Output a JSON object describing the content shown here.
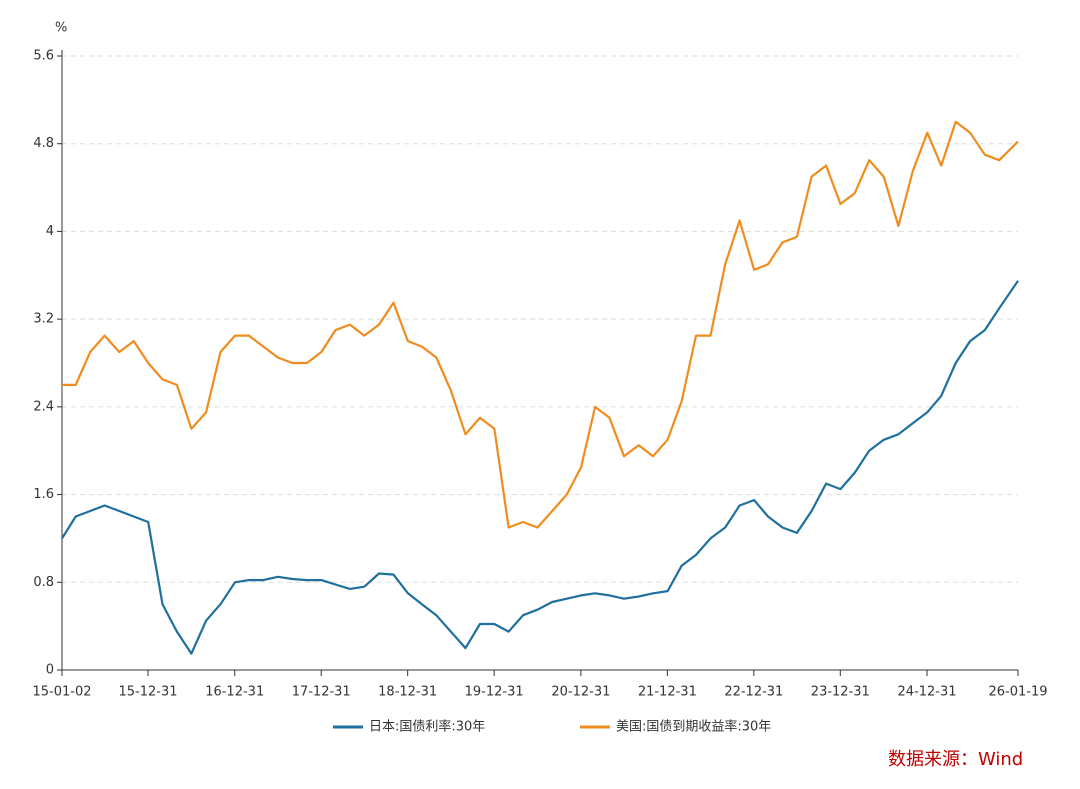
{
  "chart_data": {
    "type": "line",
    "y_unit": "%",
    "source": "数据来源：Wind",
    "x": [
      "15-01-02",
      "15-03-01",
      "15-05-01",
      "15-07-01",
      "15-09-01",
      "15-11-01",
      "16-01-01",
      "16-03-01",
      "16-05-01",
      "16-07-01",
      "16-09-01",
      "16-11-01",
      "17-01-01",
      "17-03-01",
      "17-05-01",
      "17-07-01",
      "17-09-01",
      "17-11-01",
      "18-01-01",
      "18-03-01",
      "18-05-01",
      "18-07-01",
      "18-09-01",
      "18-11-01",
      "19-01-01",
      "19-03-01",
      "19-05-01",
      "19-07-01",
      "19-09-01",
      "19-11-01",
      "20-01-01",
      "20-03-01",
      "20-05-01",
      "20-07-01",
      "20-09-01",
      "20-11-01",
      "21-01-01",
      "21-03-01",
      "21-05-01",
      "21-07-01",
      "21-09-01",
      "21-11-01",
      "22-01-01",
      "22-03-01",
      "22-05-01",
      "22-07-01",
      "22-09-01",
      "22-11-01",
      "23-01-01",
      "23-03-01",
      "23-05-01",
      "23-07-01",
      "23-09-01",
      "23-11-01",
      "24-01-01",
      "24-03-01",
      "24-05-01",
      "24-07-01",
      "24-09-01",
      "24-11-01",
      "25-01-01",
      "25-03-01",
      "25-05-01",
      "25-07-01",
      "25-09-01",
      "25-11-01",
      "26-01-19"
    ],
    "series": [
      {
        "name": "日本:国债利率:30年",
        "color": "#1f6f9f",
        "values": [
          1.2,
          1.4,
          1.45,
          1.5,
          1.45,
          1.4,
          1.35,
          0.6,
          0.35,
          0.15,
          0.45,
          0.6,
          0.8,
          0.82,
          0.82,
          0.85,
          0.83,
          0.82,
          0.82,
          0.78,
          0.74,
          0.76,
          0.88,
          0.87,
          0.7,
          0.6,
          0.5,
          0.35,
          0.2,
          0.42,
          0.42,
          0.35,
          0.5,
          0.55,
          0.62,
          0.65,
          0.68,
          0.7,
          0.68,
          0.65,
          0.67,
          0.7,
          0.72,
          0.95,
          1.05,
          1.2,
          1.3,
          1.5,
          1.55,
          1.4,
          1.3,
          1.25,
          1.45,
          1.7,
          1.65,
          1.8,
          2.0,
          2.1,
          2.15,
          2.25,
          2.35,
          2.5,
          2.8,
          3.0,
          3.1,
          3.3,
          3.55
        ]
      },
      {
        "name": "美国:国债到期收益率:30年",
        "color": "#f08c1e",
        "values": [
          2.6,
          2.6,
          2.9,
          3.05,
          2.9,
          3.0,
          2.8,
          2.65,
          2.6,
          2.2,
          2.35,
          2.9,
          3.05,
          3.05,
          2.95,
          2.85,
          2.8,
          2.8,
          2.9,
          3.1,
          3.15,
          3.05,
          3.15,
          3.35,
          3.0,
          2.95,
          2.85,
          2.55,
          2.15,
          2.3,
          2.2,
          1.3,
          1.35,
          1.3,
          1.45,
          1.6,
          1.85,
          2.4,
          2.3,
          1.95,
          2.05,
          1.95,
          2.1,
          2.45,
          3.05,
          3.05,
          3.7,
          4.1,
          3.65,
          3.7,
          3.9,
          3.95,
          4.5,
          4.6,
          4.25,
          4.35,
          4.65,
          4.5,
          4.05,
          4.55,
          4.9,
          4.6,
          5.0,
          4.9,
          4.7,
          4.65,
          4.82
        ]
      }
    ],
    "xlim": [
      "15-01-02",
      "26-01-19"
    ],
    "xticks": [
      "15-01-02",
      "15-12-31",
      "16-12-31",
      "17-12-31",
      "18-12-31",
      "19-12-31",
      "20-12-31",
      "21-12-31",
      "22-12-31",
      "23-12-31",
      "24-12-31",
      "26-01-19"
    ],
    "ylim": [
      0,
      5.6
    ],
    "yticks": [
      0,
      0.8,
      1.6,
      2.4,
      3.2,
      4,
      4.8,
      5.6
    ],
    "grid": true,
    "legend": "bottom"
  }
}
